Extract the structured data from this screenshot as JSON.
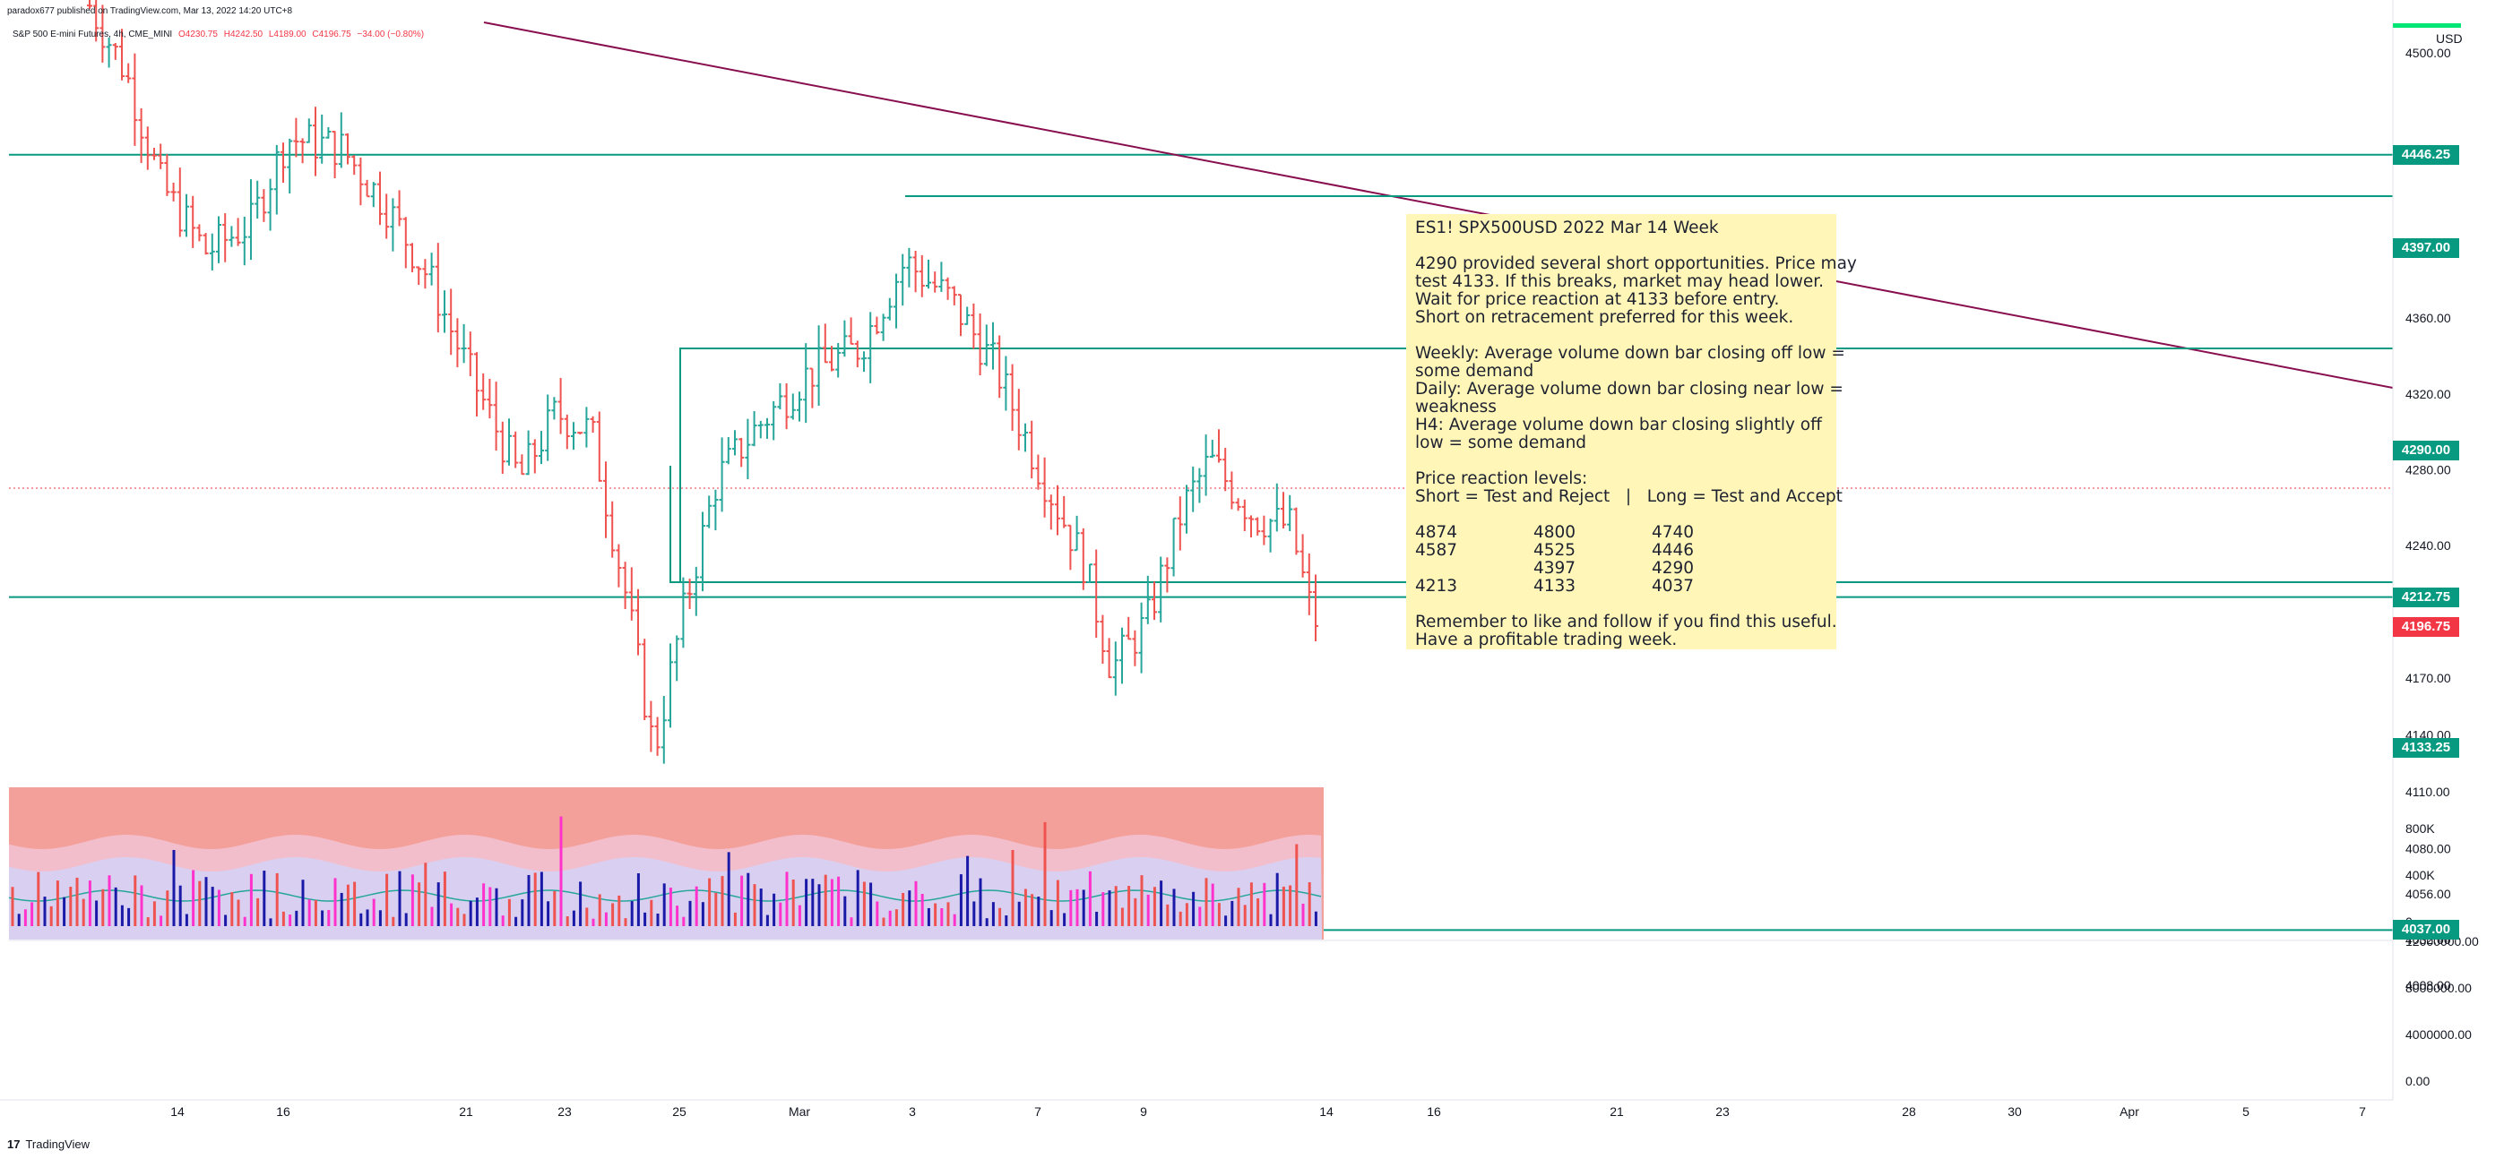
{
  "header": {
    "publisher": "paradox677 published on TradingView.com, Mar 13, 2022 14:20 UTC+8",
    "symbol": "S&P 500 E-mini Futures, 4h, CME_MINI",
    "open": "O4230.75",
    "high": "H4242.50",
    "low": "L4189.00",
    "close": "C4196.75",
    "change": "−34.00 (−0.80%)"
  },
  "currency": "USD",
  "price_axis": [
    "4500.00",
    "4360.00",
    "4320.00",
    "4280.00",
    "4240.00",
    "4170.00",
    "4140.00",
    "4110.00",
    "4080.00",
    "4056.00",
    "4032.00",
    "4008.00"
  ],
  "level_tags": [
    {
      "label": "4446.25",
      "color": "#089981",
      "price": 4446.25
    },
    {
      "label": "4397.00",
      "color": "#089981",
      "price": 4397.0
    },
    {
      "label": "4290.00",
      "color": "#089981",
      "price": 4290.0
    },
    {
      "label": "4212.75",
      "color": "#089981",
      "price": 4212.75
    },
    {
      "label": "4196.75",
      "color": "#f23645",
      "price": 4196.75
    },
    {
      "label": "4133.25",
      "color": "#089981",
      "price": 4133.25
    },
    {
      "label": "4037.00",
      "color": "#089981",
      "price": 4037.0
    }
  ],
  "volume_axis": [
    "800K",
    "400K",
    "0"
  ],
  "indicator_axis": [
    "12000000.00",
    "8000000.00",
    "4000000.00",
    "0.00"
  ],
  "time_axis": [
    "14",
    "16",
    "21",
    "23",
    "25",
    "Mar",
    "3",
    "7",
    "9",
    "14",
    "16",
    "21",
    "23",
    "28",
    "30",
    "Apr",
    "5",
    "7"
  ],
  "note": {
    "title": "ES1! SPX500USD 2022 Mar 14 Week",
    "para1": [
      "4290 provided several short opportunities. Price may",
      "test 4133. If this breaks, market may head lower.",
      "Wait for price reaction at 4133 before entry.",
      "Short on retracement preferred for this week."
    ],
    "para2": [
      "Weekly: Average volume down bar closing off low =",
      "some demand",
      "Daily: Average volume down bar closing near low =",
      "weakness",
      "H4: Average volume down bar closing slightly off",
      "low = some demand"
    ],
    "levels_title": "Price reaction levels:",
    "levels_header": "Short = Test and Reject   |   Long = Test and Accept",
    "table": [
      [
        "4874",
        "4800",
        "4740"
      ],
      [
        "4587",
        "4525",
        "4446"
      ],
      [
        "",
        "4397",
        "4290"
      ],
      [
        "4213",
        "4133",
        "4037"
      ]
    ],
    "outro": [
      "Remember to like and follow if you find this useful.",
      "Have a profitable trading week."
    ]
  },
  "footer": "TradingView",
  "colors": {
    "up": "#26a69a",
    "down": "#ef5350",
    "level": "#089981",
    "trend": "#880e4f",
    "note_bg": "#fff6b8",
    "vol_bg": "#f4a09a"
  }
}
